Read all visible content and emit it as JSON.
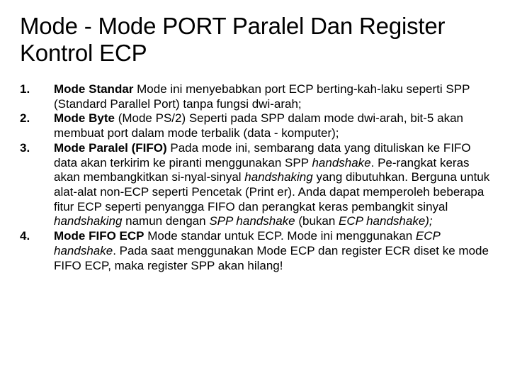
{
  "title": "Mode - Mode PORT Paralel Dan Register Kontrol ECP",
  "items": [
    {
      "num": "1.",
      "bold": "Mode Standar",
      "rest": " Mode ini menyebabkan port ECP berting-kah-laku seperti SPP (Standard Parallel Port) tanpa fungsi dwi-arah;"
    },
    {
      "num": "2.",
      "bold": "Mode Byte",
      "rest": " (Mode PS/2) Seperti pada SPP dalam mode dwi-arah, bit-5 akan membuat port dalam mode terbalik (data - komputer);"
    },
    {
      "num": "3.",
      "bold": "Mode Paralel (FIFO)",
      "rest_html": " Pada mode ini, sembarang data yang dituliskan ke FIFO data akan terkirim ke piranti menggunakan SPP <i>handshake</i>. Pe-rangkat keras akan membangkitkan si-nyal-sinyal <i>handshaking</i> yang dibutuhkan. Berguna untuk alat-alat non-ECP seperti Pencetak (Print er). Anda dapat memperoleh beberapa fitur ECP seperti penyangga FIFO dan perangkat keras pembangkit sinyal <i>handshaking</i> namun dengan <i>SPP handshake</i> (bukan <i>ECP handshake);</i>"
    },
    {
      "num": "4.",
      "bold": "Mode FIFO ECP",
      "rest_html": " Mode standar untuk ECP. Mode ini menggunakan <i>ECP handshake</i>. Pada saat menggunakan Mode ECP dan register ECR diset ke mode FIFO ECP, maka register SPP akan hilang!"
    }
  ]
}
